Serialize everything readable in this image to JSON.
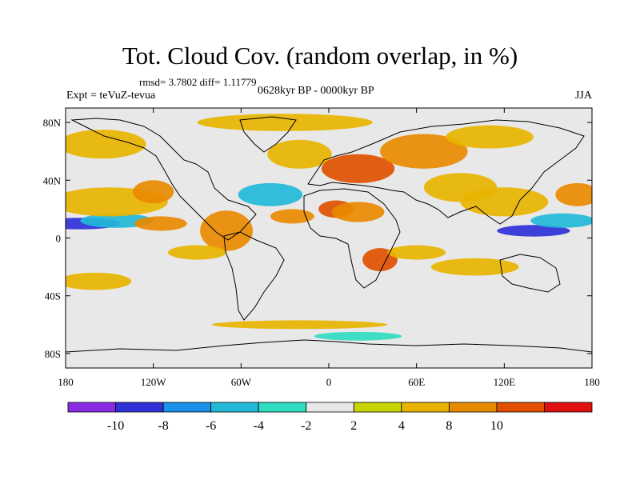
{
  "chart_data": {
    "type": "heatmap",
    "title": "Tot. Cloud Cov. (random overlap, in %)",
    "stats": "rmsd= 3.7802 diff= 1.11779",
    "experiment": "Expt = teVuZ-tevua",
    "period": "0628kyr BP - 0000kyr BP",
    "season": "JJA",
    "x_ticks": [
      "180",
      "120W",
      "60W",
      "0",
      "60E",
      "120E",
      "180"
    ],
    "x_tick_values": [
      -180,
      -120,
      -60,
      0,
      60,
      120,
      180
    ],
    "y_ticks": [
      "80N",
      "40N",
      "0",
      "40S",
      "80S"
    ],
    "y_tick_values": [
      80,
      40,
      0,
      -40,
      -80
    ],
    "xlim": [
      -180,
      180
    ],
    "ylim": [
      -90,
      90
    ],
    "colorbar": {
      "labels": [
        "-10",
        "-8",
        "-6",
        "-4",
        "-2",
        "2",
        "4",
        "8",
        "10"
      ],
      "colors": [
        "#8a2be2",
        "#3030d8",
        "#1a90e8",
        "#22b8d8",
        "#30dcc0",
        "#e8e8e8",
        "#c8d400",
        "#e8b400",
        "#e88a00",
        "#e05000",
        "#e01010"
      ]
    },
    "anomaly_regions": [
      {
        "lon": -170,
        "lat": 10,
        "rx": 28,
        "ry": 4,
        "level": -9
      },
      {
        "lon": -145,
        "lat": 12,
        "rx": 25,
        "ry": 5,
        "level": -6
      },
      {
        "lon": -150,
        "lat": 25,
        "rx": 40,
        "ry": 10,
        "level": 4
      },
      {
        "lon": -120,
        "lat": 32,
        "rx": 14,
        "ry": 8,
        "level": 8
      },
      {
        "lon": -115,
        "lat": 10,
        "rx": 18,
        "ry": 5,
        "level": 8
      },
      {
        "lon": -70,
        "lat": 5,
        "rx": 18,
        "ry": 14,
        "level": 8
      },
      {
        "lon": -40,
        "lat": 30,
        "rx": 22,
        "ry": 8,
        "level": -5
      },
      {
        "lon": -25,
        "lat": 15,
        "rx": 15,
        "ry": 5,
        "level": 8
      },
      {
        "lon": -20,
        "lat": 58,
        "rx": 22,
        "ry": 10,
        "level": 6
      },
      {
        "lon": -30,
        "lat": 80,
        "rx": 60,
        "ry": 6,
        "level": 6
      },
      {
        "lon": -155,
        "lat": 65,
        "rx": 30,
        "ry": 10,
        "level": 4
      },
      {
        "lon": 20,
        "lat": 48,
        "rx": 25,
        "ry": 10,
        "level": 10
      },
      {
        "lon": 5,
        "lat": 20,
        "rx": 12,
        "ry": 6,
        "level": 11
      },
      {
        "lon": 20,
        "lat": 18,
        "rx": 18,
        "ry": 7,
        "level": 8
      },
      {
        "lon": 65,
        "lat": 60,
        "rx": 30,
        "ry": 12,
        "level": 8
      },
      {
        "lon": 110,
        "lat": 70,
        "rx": 30,
        "ry": 8,
        "level": 6
      },
      {
        "lon": 90,
        "lat": 35,
        "rx": 25,
        "ry": 10,
        "level": 4
      },
      {
        "lon": 35,
        "lat": -15,
        "rx": 12,
        "ry": 8,
        "level": 10
      },
      {
        "lon": 60,
        "lat": -10,
        "rx": 20,
        "ry": 5,
        "level": 4
      },
      {
        "lon": 140,
        "lat": 5,
        "rx": 25,
        "ry": 4,
        "level": -10
      },
      {
        "lon": 160,
        "lat": 12,
        "rx": 22,
        "ry": 5,
        "level": -6
      },
      {
        "lon": 120,
        "lat": 25,
        "rx": 30,
        "ry": 10,
        "level": 4
      },
      {
        "lon": 170,
        "lat": 30,
        "rx": 15,
        "ry": 8,
        "level": 8
      },
      {
        "lon": 100,
        "lat": -20,
        "rx": 30,
        "ry": 6,
        "level": 4
      },
      {
        "lon": -160,
        "lat": -30,
        "rx": 25,
        "ry": 6,
        "level": 4
      },
      {
        "lon": -90,
        "lat": -10,
        "rx": 20,
        "ry": 5,
        "level": 6
      },
      {
        "lon": -20,
        "lat": -60,
        "rx": 60,
        "ry": 3,
        "level": 4
      },
      {
        "lon": 20,
        "lat": -68,
        "rx": 30,
        "ry": 3,
        "level": -4
      }
    ]
  }
}
